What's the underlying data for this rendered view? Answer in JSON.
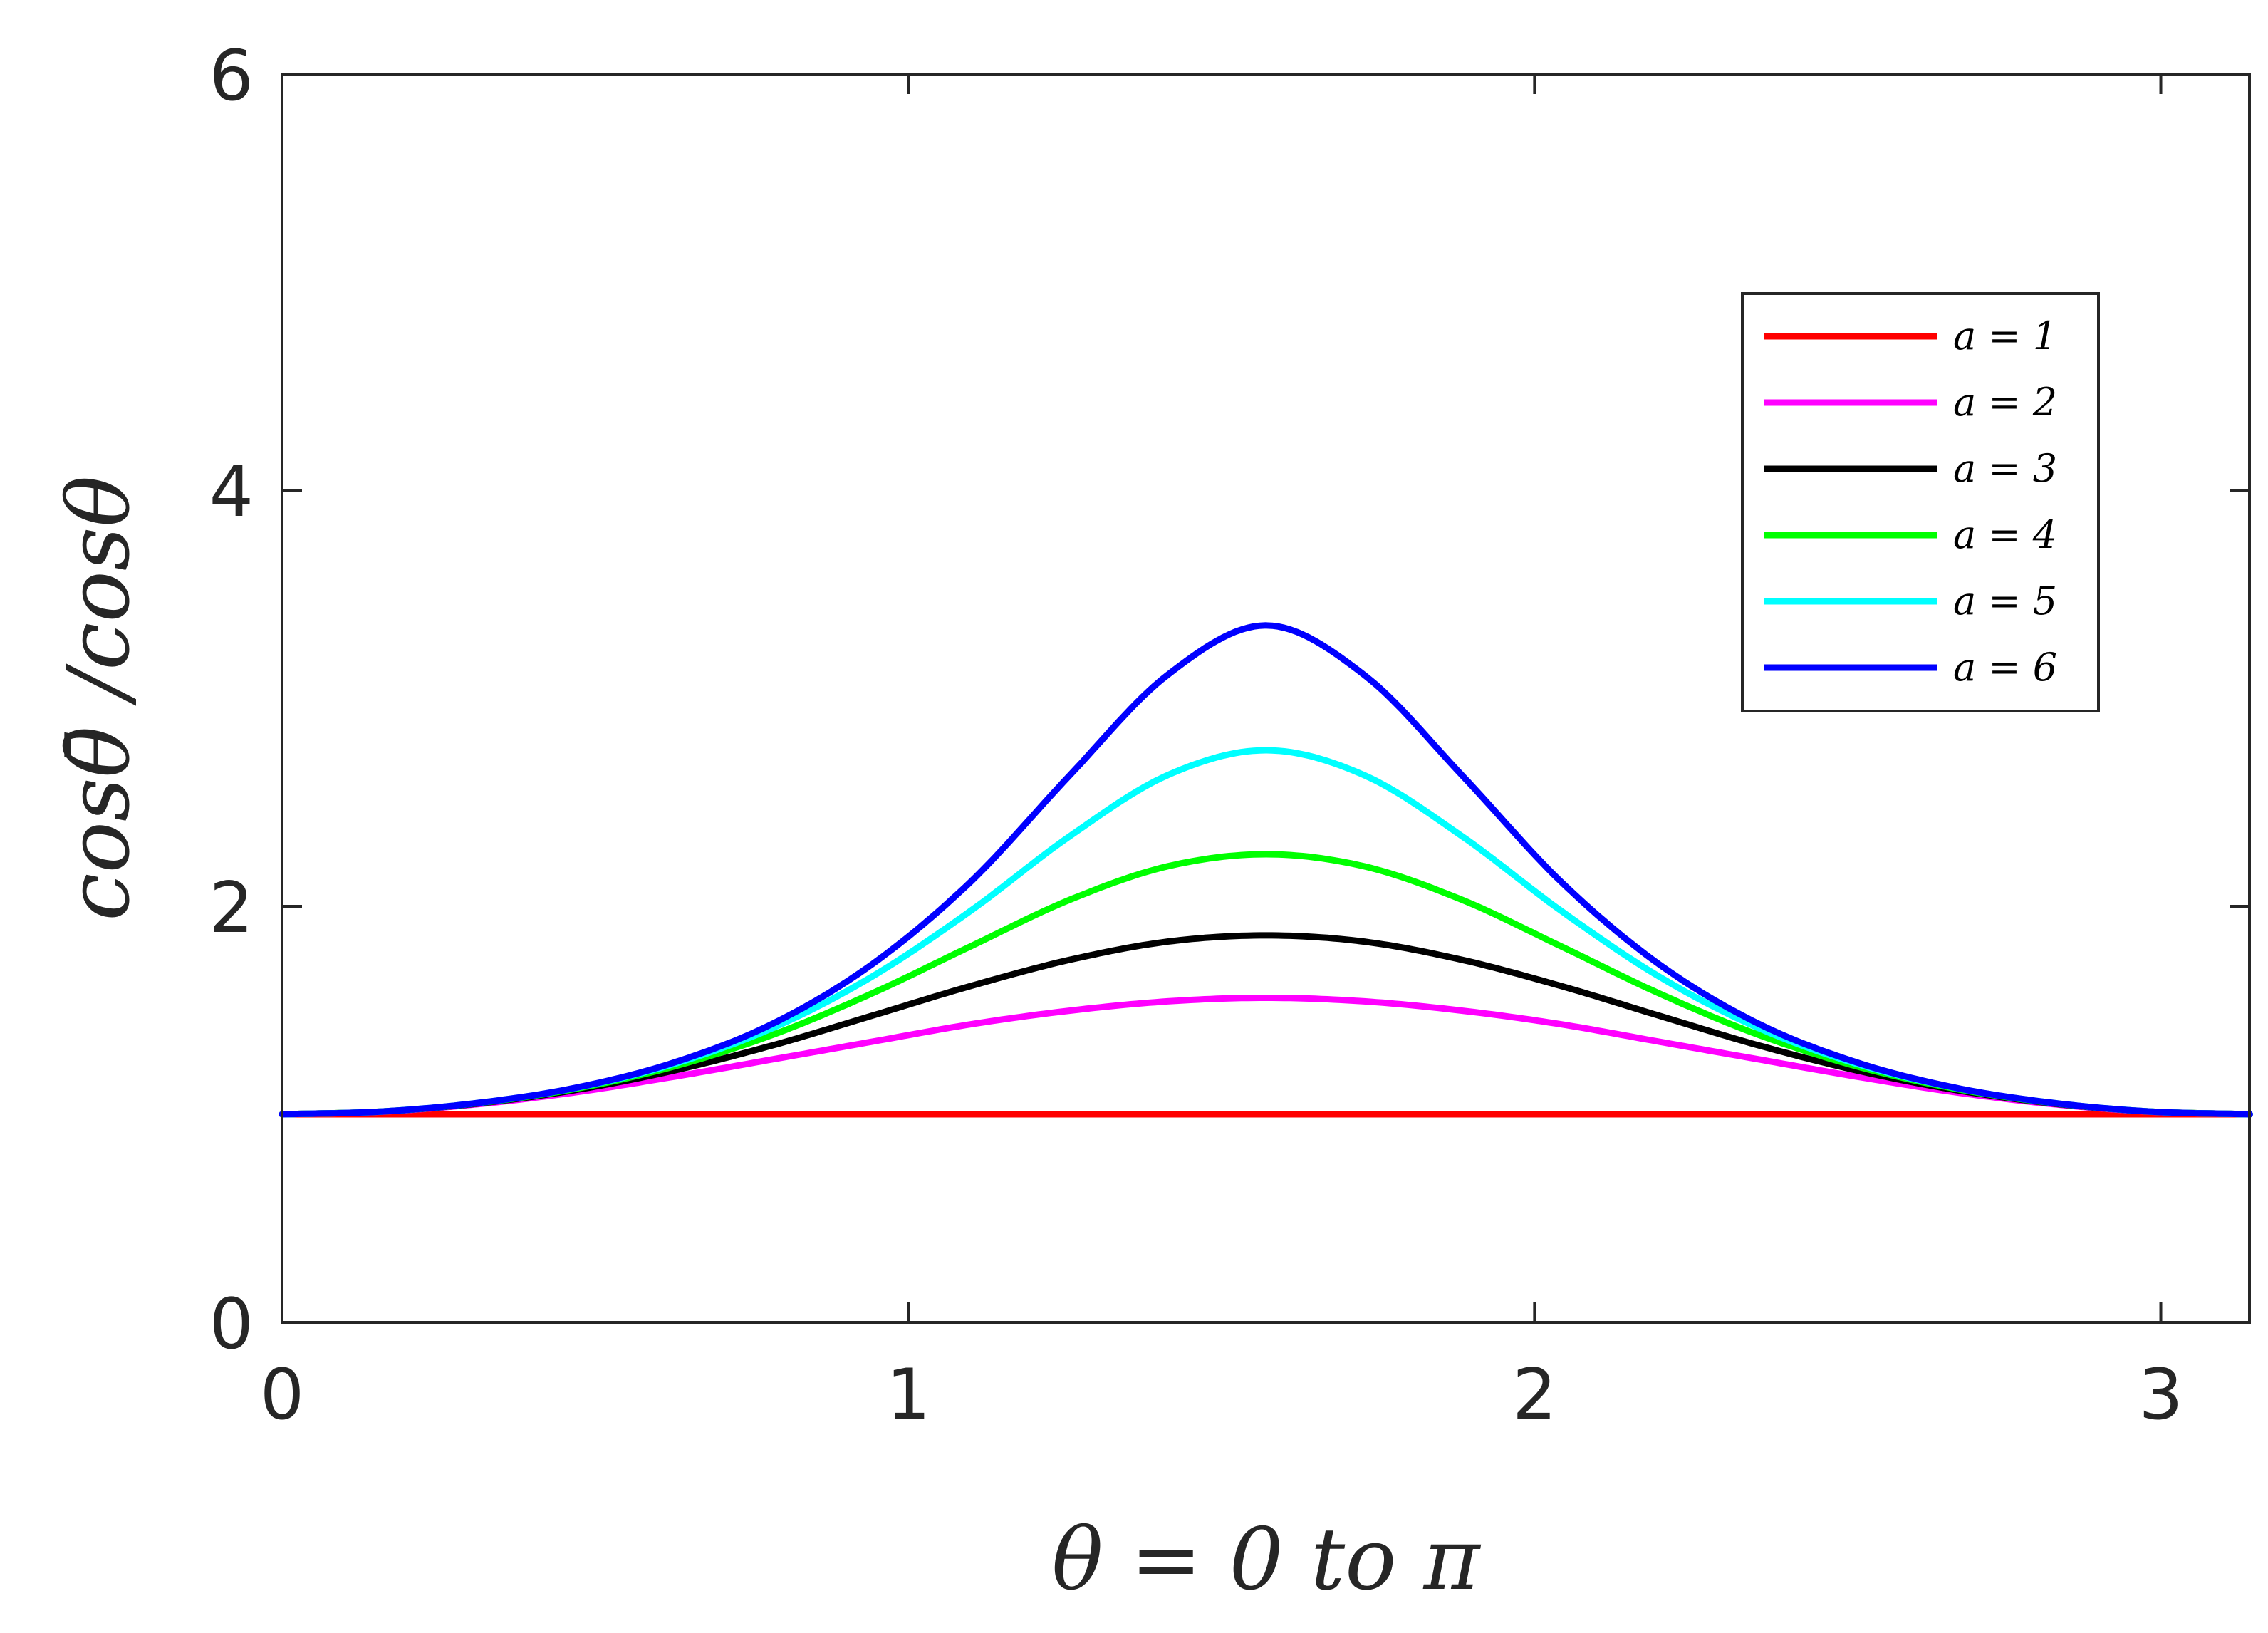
{
  "chart_data": {
    "type": "line",
    "xlabel": "θ = 0 to π",
    "ylabel": "cosθ̄ /cosθ",
    "xlim": [
      0,
      3.14159
    ],
    "ylim": [
      0,
      6
    ],
    "xticks": [
      0,
      1,
      2,
      3
    ],
    "yticks": [
      0,
      2,
      4,
      6
    ],
    "xtick_labels": [
      "0",
      "1",
      "2",
      "3"
    ],
    "ytick_labels": [
      "0",
      "2",
      "4",
      "6"
    ],
    "grid": false,
    "legend_position": "top-right",
    "x": [
      0,
      0.157,
      0.314,
      0.471,
      0.628,
      0.785,
      0.942,
      1.1,
      1.257,
      1.414,
      1.571,
      1.728,
      1.885,
      2.042,
      2.199,
      2.356,
      2.513,
      2.67,
      2.827,
      2.985,
      3.142
    ],
    "series": [
      {
        "name": "a = 1",
        "color": "#ff0000",
        "values": [
          1,
          1,
          1,
          1,
          1,
          1,
          1,
          1,
          1,
          1,
          1,
          1,
          1,
          1,
          1,
          1,
          1,
          1,
          1,
          1,
          1
        ]
      },
      {
        "name": "a = 2",
        "color": "#ff00ff",
        "values": [
          1,
          1.012,
          1.049,
          1.107,
          1.182,
          1.265,
          1.349,
          1.433,
          1.498,
          1.543,
          1.56,
          1.543,
          1.498,
          1.433,
          1.349,
          1.265,
          1.182,
          1.107,
          1.049,
          1.012,
          1
        ]
      },
      {
        "name": "a = 3",
        "color": "#000000",
        "values": [
          1,
          1.013,
          1.052,
          1.118,
          1.212,
          1.333,
          1.474,
          1.617,
          1.742,
          1.83,
          1.86,
          1.83,
          1.742,
          1.617,
          1.474,
          1.333,
          1.212,
          1.118,
          1.052,
          1.013,
          1
        ]
      },
      {
        "name": "a = 4",
        "color": "#00ff00",
        "values": [
          1,
          1.013,
          1.054,
          1.124,
          1.232,
          1.384,
          1.581,
          1.808,
          2.03,
          2.192,
          2.25,
          2.192,
          2.03,
          1.808,
          1.581,
          1.384,
          1.232,
          1.124,
          1.054,
          1.013,
          1
        ]
      },
      {
        "name": "a = 5",
        "color": "#00ffff",
        "values": [
          1,
          1.013,
          1.055,
          1.128,
          1.244,
          1.417,
          1.662,
          1.979,
          2.335,
          2.63,
          2.75,
          2.63,
          2.335,
          1.979,
          1.662,
          1.417,
          1.244,
          1.128,
          1.055,
          1.013,
          1
        ]
      },
      {
        "name": "a = 6",
        "color": "#0000ff",
        "values": [
          1,
          1.013,
          1.055,
          1.129,
          1.251,
          1.438,
          1.721,
          2.119,
          2.627,
          3.112,
          3.35,
          3.112,
          2.627,
          2.119,
          1.721,
          1.438,
          1.251,
          1.129,
          1.055,
          1.013,
          1
        ]
      }
    ]
  }
}
